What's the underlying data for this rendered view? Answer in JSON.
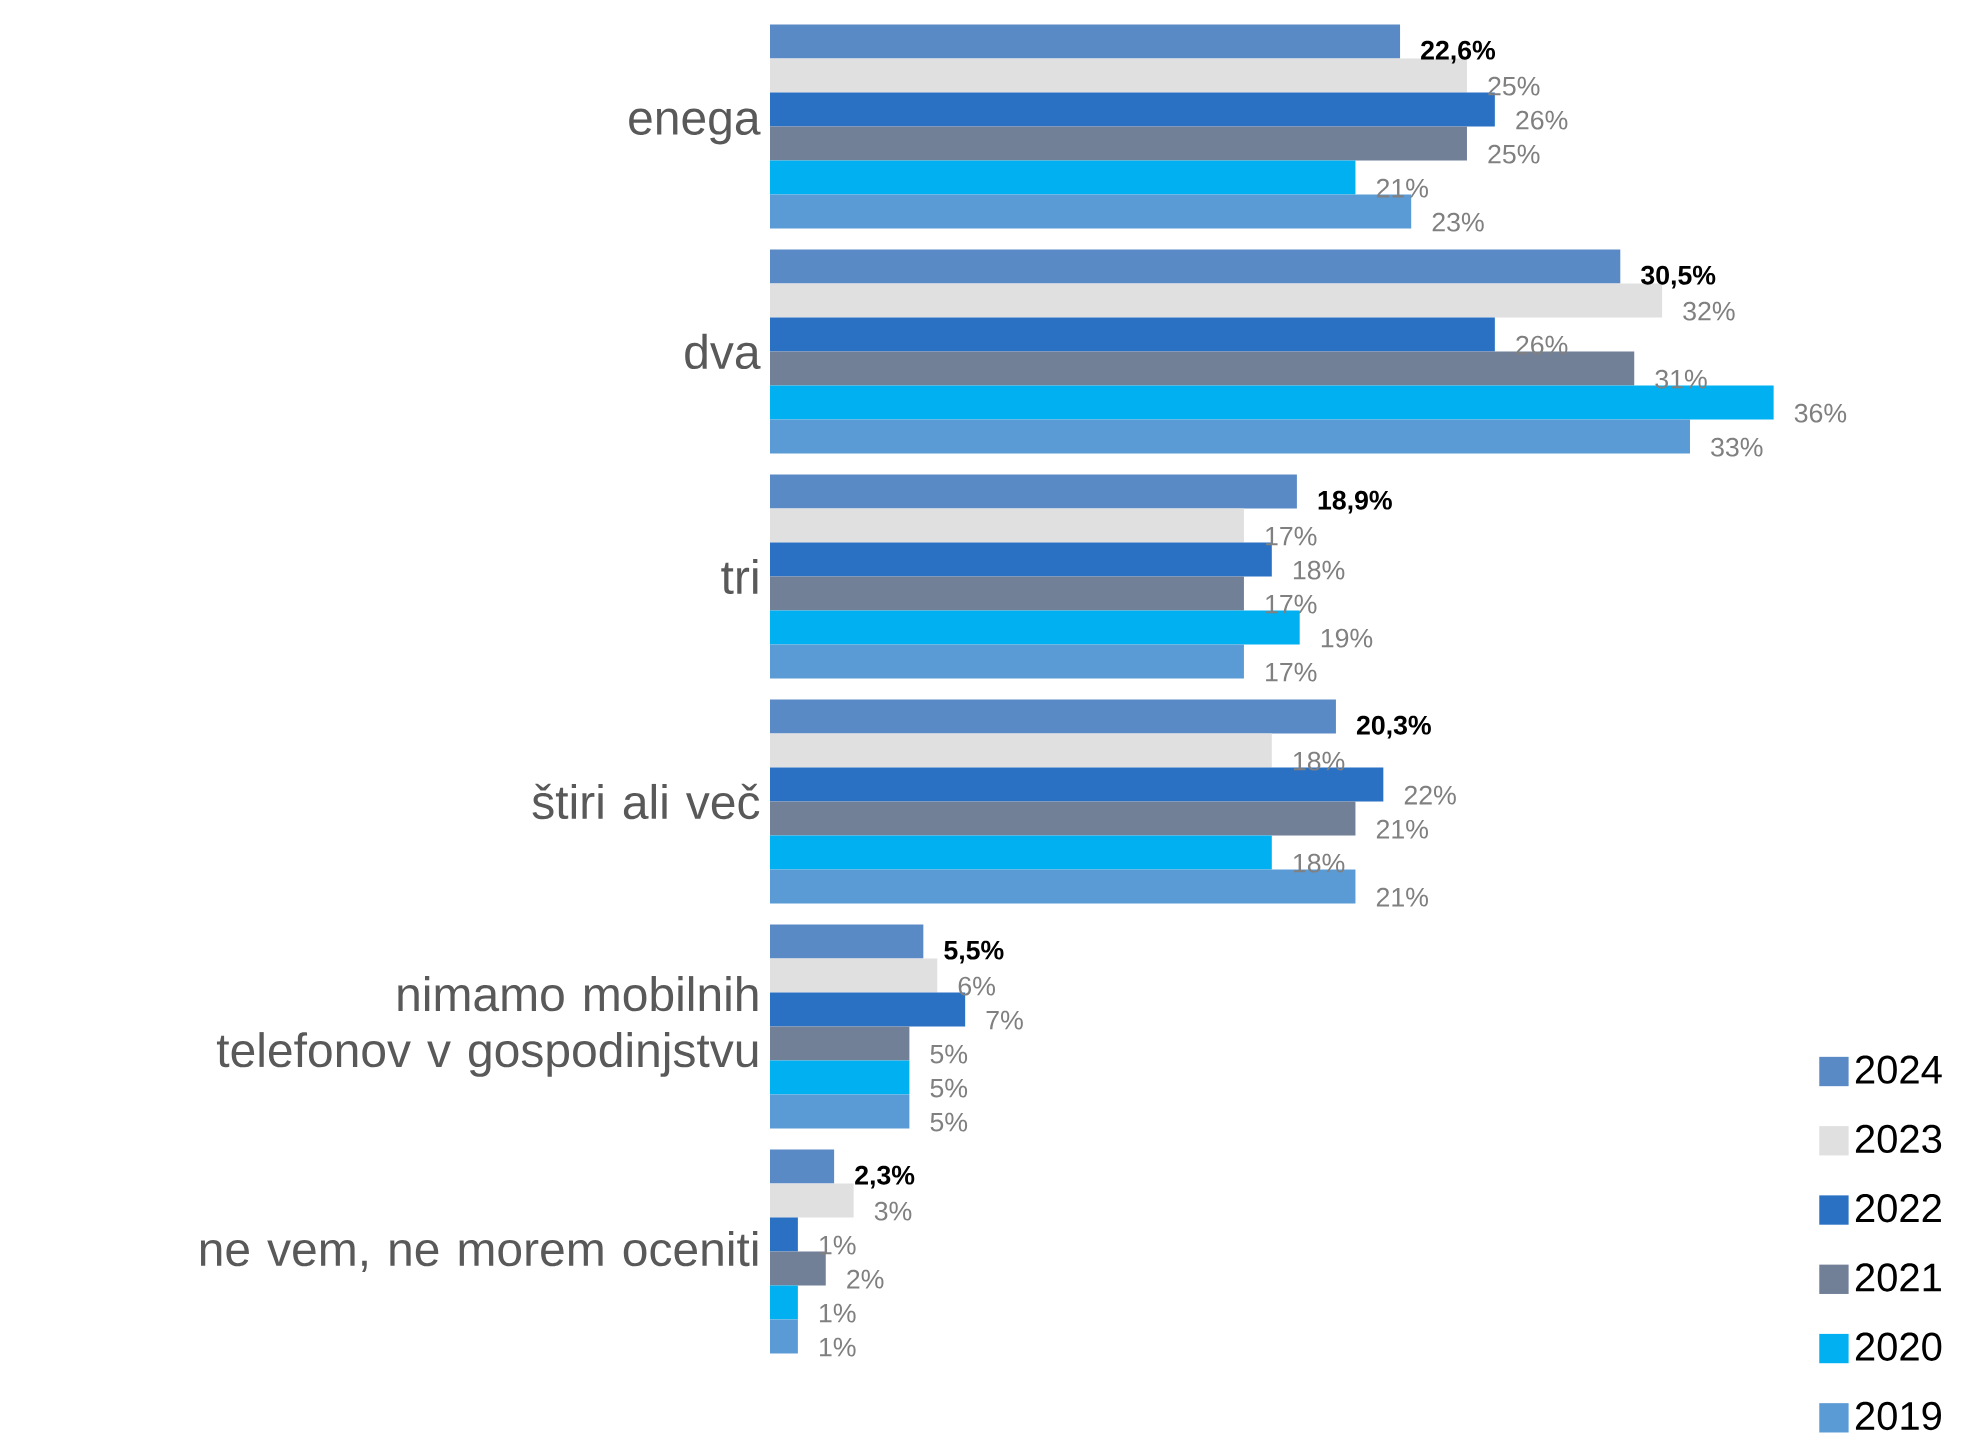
{
  "chart_data": {
    "type": "bar",
    "orientation": "horizontal",
    "legend": "bottom right",
    "categories": [
      "enega",
      "dva",
      "tri",
      "štiri ali več",
      "nimamo mobilnih telefonov v gospodinjstvu",
      "ne vem, ne morem oceniti"
    ],
    "series": [
      {
        "name": "2024",
        "color": "#5a8ac6",
        "values": [
          22.6,
          30.5,
          18.9,
          20.3,
          5.5,
          2.3
        ],
        "value_labels": [
          "22,6%",
          "30,5%",
          "18,9%",
          "20,3%",
          "5,5%",
          "2,3%"
        ]
      },
      {
        "name": "2023",
        "color": "#e0e0e0",
        "values": [
          25,
          32,
          17,
          18,
          6,
          3
        ],
        "value_labels": [
          "25%",
          "32%",
          "17%",
          "18%",
          "6%",
          "3%"
        ]
      },
      {
        "name": "2022",
        "color": "#2a71c4",
        "values": [
          26,
          26,
          18,
          22,
          7,
          1
        ],
        "value_labels": [
          "26%",
          "26%",
          "18%",
          "22%",
          "7%",
          "1%"
        ]
      },
      {
        "name": "2021",
        "color": "#717f97",
        "values": [
          25,
          31,
          17,
          21,
          5,
          2
        ],
        "value_labels": [
          "25%",
          "31%",
          "17%",
          "21%",
          "5%",
          "2%"
        ]
      },
      {
        "name": "2020",
        "color": "#00b0f0",
        "values": [
          21,
          36,
          19,
          18,
          5,
          1
        ],
        "value_labels": [
          "21%",
          "36%",
          "19%",
          "18%",
          "5%",
          "1%"
        ]
      },
      {
        "name": "2019",
        "color": "#5b9bd5",
        "values": [
          23,
          33,
          17,
          21,
          5,
          1
        ],
        "value_labels": [
          "23%",
          "33%",
          "17%",
          "21%",
          "5%",
          "1%"
        ]
      }
    ]
  }
}
